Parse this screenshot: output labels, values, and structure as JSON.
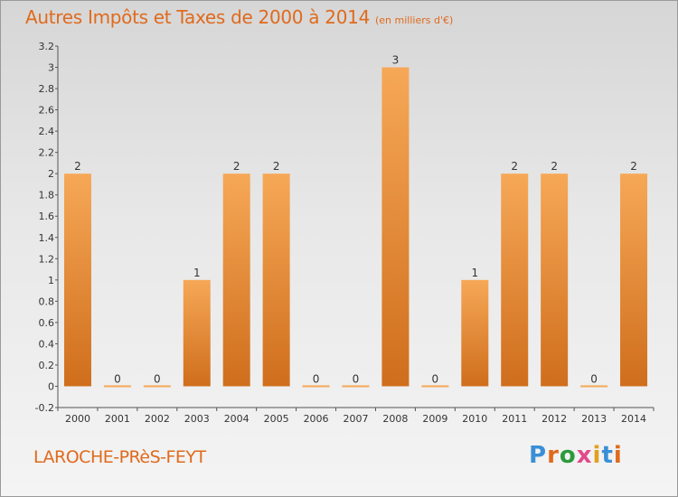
{
  "title": "Autres Impôts et Taxes de 2000 à 2014",
  "subtitle": "(en milliers d'€)",
  "commune": "LAROCHE-PRèS-FEYT",
  "logo": {
    "text": "Proxiti",
    "letter_colors": [
      "#3a8fd6",
      "#e06a1c",
      "#2c9a3a",
      "#e24a8a",
      "#e0a020",
      "#3a8fd6",
      "#e06a1c"
    ]
  },
  "colors": {
    "bar_light": "#f6a857",
    "bar_dark": "#cf6e1c",
    "accent": "#e06a1c"
  },
  "chart_data": {
    "type": "bar",
    "categories": [
      "2000",
      "2001",
      "2002",
      "2003",
      "2004",
      "2005",
      "2006",
      "2007",
      "2008",
      "2009",
      "2010",
      "2011",
      "2012",
      "2013",
      "2014"
    ],
    "values": [
      2,
      0,
      0,
      1,
      2,
      2,
      0,
      0,
      3,
      0,
      1,
      2,
      2,
      0,
      2
    ],
    "data_labels": [
      "2",
      "0",
      "0",
      "1",
      "2",
      "2",
      "0",
      "0",
      "3",
      "0",
      "1",
      "2",
      "2",
      "0",
      "2"
    ],
    "y_ticks": [
      "3.2",
      "3",
      "2.8",
      "2.6",
      "2.4",
      "2.2",
      "2",
      "1.8",
      "1.6",
      "1.4",
      "1.2",
      "1",
      "0.8",
      "0.6",
      "0.4",
      "0.2",
      "0",
      "-0.2"
    ],
    "ylim": [
      -0.2,
      3.2
    ],
    "grid": false,
    "title": "Autres Impôts et Taxes de 2000 à 2014",
    "xlabel": "",
    "ylabel": ""
  }
}
